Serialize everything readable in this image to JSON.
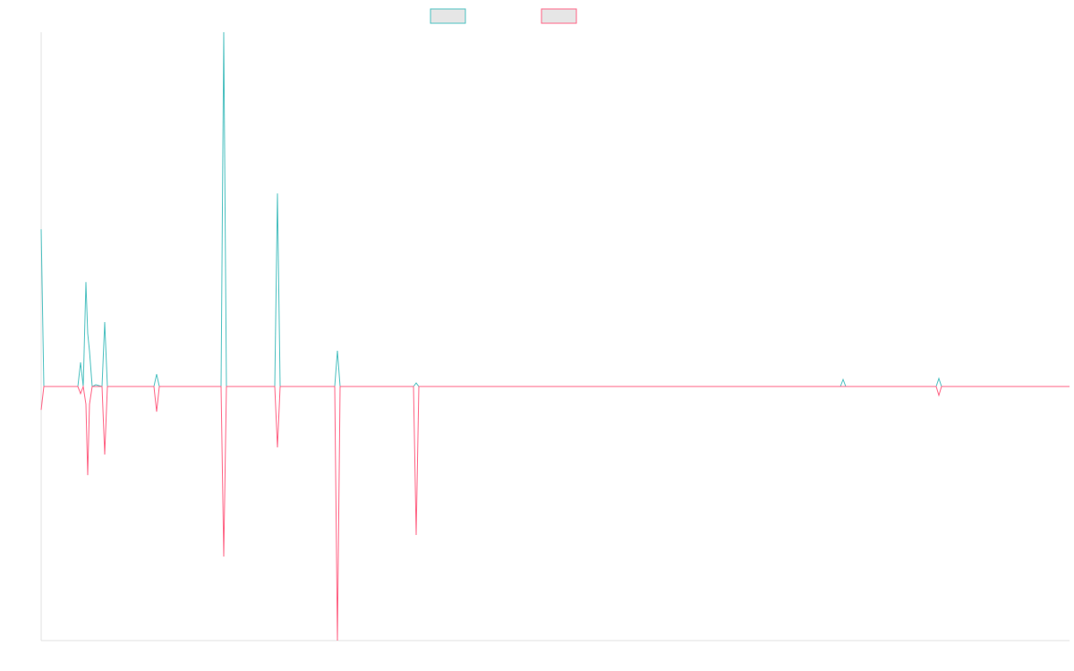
{
  "chart_data": {
    "type": "line",
    "x": [
      0,
      3,
      41,
      44,
      47,
      50,
      52,
      54,
      57,
      61,
      68,
      71,
      74,
      126,
      129,
      132,
      201,
      204,
      207,
      261,
      264,
      267,
      328,
      331,
      334,
      416,
      419,
      422,
      893,
      896,
      899,
      1000,
      1003,
      1006,
      1149
    ],
    "xlim": [
      0,
      1149
    ],
    "ylim": [
      -71.7,
      100
    ],
    "series": [
      {
        "color": "#4bc0c0",
        "values": [
          44.4,
          0,
          0,
          6.8,
          0,
          29.5,
          15,
          10,
          0,
          0.5,
          0,
          18.2,
          0,
          0,
          3.5,
          0,
          0,
          100,
          0,
          0,
          54.5,
          0,
          0,
          10.1,
          0,
          0,
          1,
          0,
          0,
          2,
          0,
          0,
          2.3,
          0,
          0
        ]
      },
      {
        "color": "#ff6384",
        "values": [
          -6.6,
          0,
          0,
          -2,
          0,
          -5,
          -25,
          -5,
          0,
          0,
          0,
          -19.2,
          0,
          0,
          -7.1,
          0,
          0,
          -48,
          0,
          0,
          -17.2,
          0,
          0,
          -71.7,
          0,
          0,
          -41.9,
          0,
          0,
          0,
          0,
          0,
          -2.5,
          0,
          0
        ]
      }
    ]
  }
}
